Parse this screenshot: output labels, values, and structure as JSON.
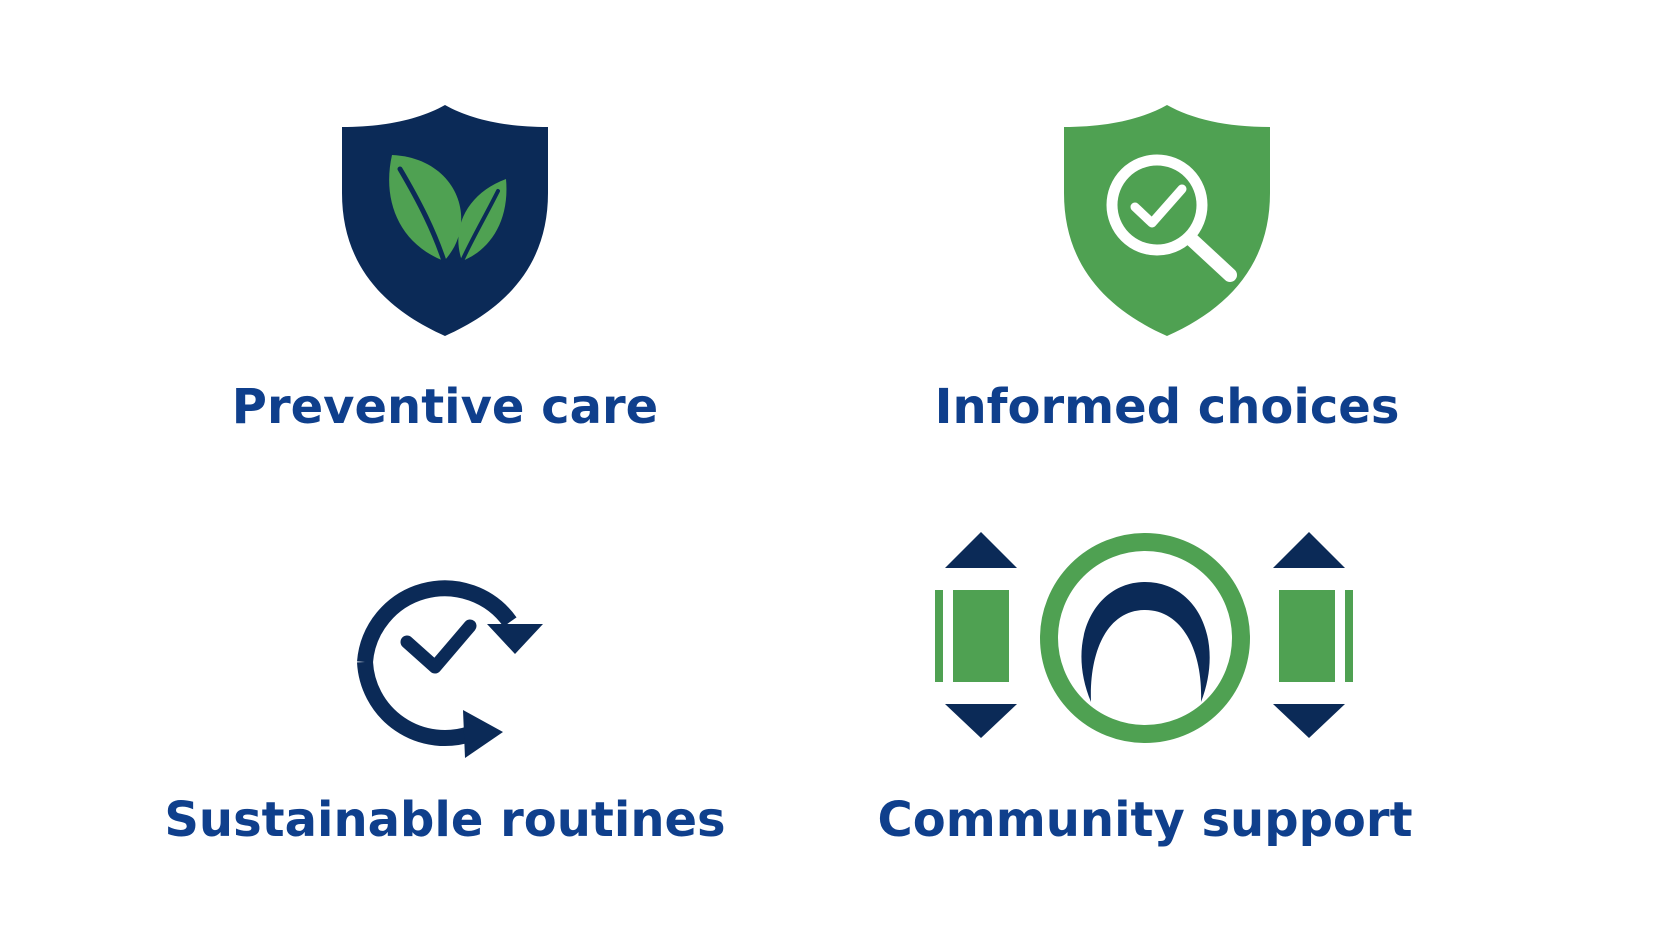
{
  "colors": {
    "navy": "#0b2a57",
    "green": "#4fa152",
    "label_text": "#0f3f8c",
    "background": "#ffffff"
  },
  "features": [
    {
      "label": "Preventive care",
      "icon": "shield-leaf-icon"
    },
    {
      "label": "Informed choices",
      "icon": "shield-magnifier-check-icon"
    },
    {
      "label": "Sustainable routines",
      "icon": "cycle-check-icon"
    },
    {
      "label": "Community support",
      "icon": "community-circle-icon"
    }
  ]
}
